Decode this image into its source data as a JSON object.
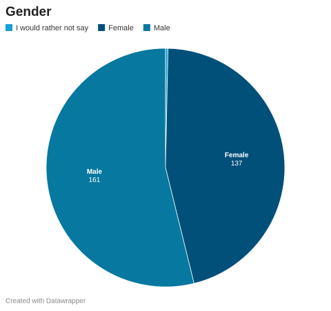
{
  "chart_data": {
    "type": "pie",
    "title": "Gender",
    "categories": [
      "I would rather not say",
      "Female",
      "Male"
    ],
    "values": [
      1,
      137,
      161
    ],
    "colors": [
      "#15a0d6",
      "#00507a",
      "#07789f"
    ]
  },
  "footer": "Created with Datawrapper"
}
